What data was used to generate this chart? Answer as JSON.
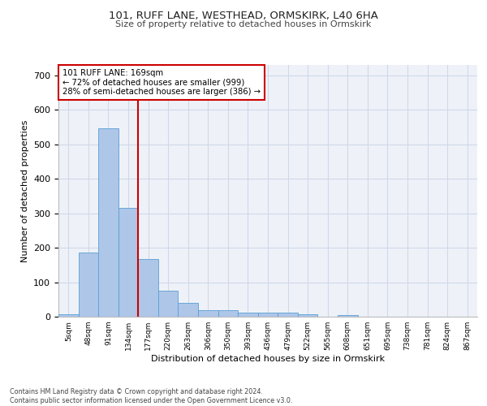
{
  "title1": "101, RUFF LANE, WESTHEAD, ORMSKIRK, L40 6HA",
  "title2": "Size of property relative to detached houses in Ormskirk",
  "xlabel": "Distribution of detached houses by size in Ormskirk",
  "ylabel": "Number of detached properties",
  "footer": "Contains HM Land Registry data © Crown copyright and database right 2024.\nContains public sector information licensed under the Open Government Licence v3.0.",
  "bin_labels": [
    "5sqm",
    "48sqm",
    "91sqm",
    "134sqm",
    "177sqm",
    "220sqm",
    "263sqm",
    "306sqm",
    "350sqm",
    "393sqm",
    "436sqm",
    "479sqm",
    "522sqm",
    "565sqm",
    "608sqm",
    "651sqm",
    "695sqm",
    "738sqm",
    "781sqm",
    "824sqm",
    "867sqm"
  ],
  "bar_values": [
    8,
    187,
    547,
    316,
    168,
    76,
    40,
    18,
    18,
    12,
    12,
    12,
    8,
    0,
    5,
    0,
    0,
    0,
    0,
    0,
    0
  ],
  "bar_color": "#aec6e8",
  "bar_edge_color": "#5a9fd4",
  "grid_color": "#d0d8e8",
  "background_color": "#eef2f8",
  "vline_index": 4,
  "vline_color": "#cc0000",
  "annotation_text": "101 RUFF LANE: 169sqm\n← 72% of detached houses are smaller (999)\n28% of semi-detached houses are larger (386) →",
  "annotation_box_color": "#ffffff",
  "annotation_box_edge": "#cc0000",
  "ylim": [
    0,
    730
  ],
  "yticks": [
    0,
    100,
    200,
    300,
    400,
    500,
    600,
    700
  ]
}
